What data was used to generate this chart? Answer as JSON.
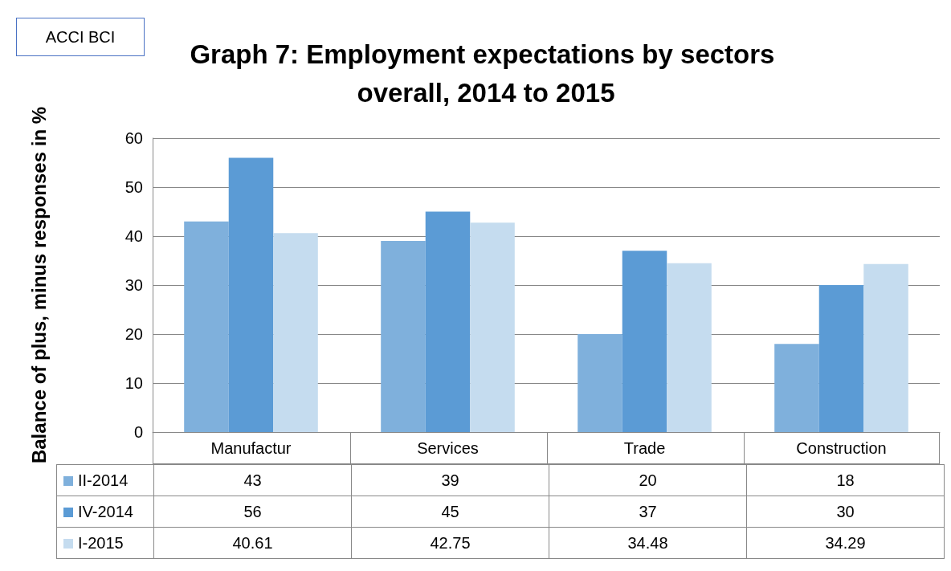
{
  "chart_data": {
    "type": "bar",
    "title": "Graph 7: Employment expectations by sectors overall, 2014 to 2015",
    "ylabel": "Balance of plus, minus responses in %",
    "annotations": [
      "ACCI BCI"
    ],
    "categories": [
      "Manufactur",
      "Services",
      "Trade",
      "Construction"
    ],
    "series": [
      {
        "name": "II-2014",
        "color": "#7fb0dc",
        "values": [
          43,
          39,
          20,
          18
        ]
      },
      {
        "name": "IV-2014",
        "color": "#5b9bd5",
        "values": [
          56,
          45,
          37,
          30
        ]
      },
      {
        "name": "I-2015",
        "color": "#c5dcef",
        "values": [
          40.61,
          42.75,
          34.48,
          34.29
        ]
      }
    ],
    "ylim": [
      0,
      60
    ],
    "yticks": [
      0,
      10,
      20,
      30,
      40,
      50,
      60
    ],
    "grid": "y",
    "legend": "bottom left",
    "data_labels": true
  }
}
